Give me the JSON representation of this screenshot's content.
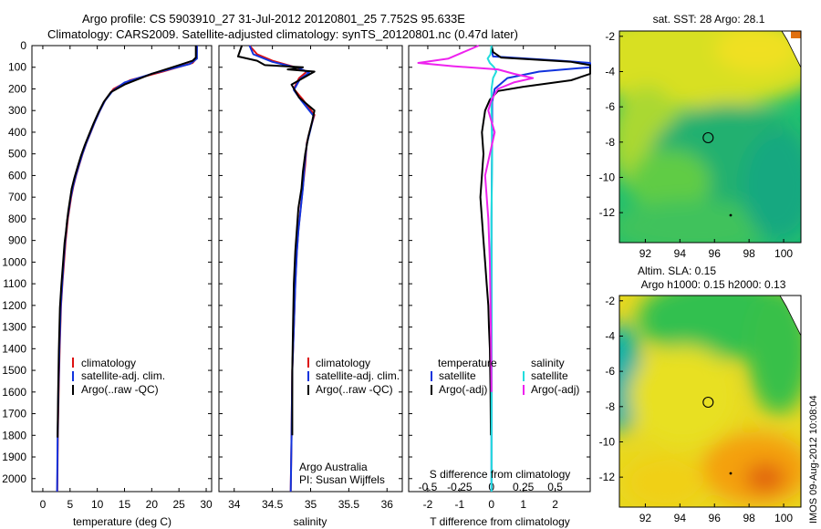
{
  "header": {
    "title_line1": "Argo profile: CS 5903910_27 31-Jul-2012 20120801_25 7.752S 95.633E",
    "title_line2": "Climatology: CARS2009. Satellite-adjusted climatology: synTS_20120801.nc (0.47d later)"
  },
  "colors": {
    "climatology": "#dd1111",
    "satellite": "#1133dd",
    "argo": "#000000",
    "salinity_satellite": "#22dddd",
    "salinity_argo": "#ee22ee"
  },
  "chart_data": [
    {
      "type": "line",
      "name": "temperature",
      "xlabel": "temperature (deg C)",
      "ylabel": "",
      "xlim": [
        -2,
        31
      ],
      "ylim": [
        2060,
        0
      ],
      "xticks": [
        "0",
        "5",
        "10",
        "15",
        "20",
        "25",
        "30"
      ],
      "xtick_values": [
        0,
        5,
        10,
        15,
        20,
        25,
        30
      ],
      "yticks": [
        "0",
        "100",
        "200",
        "300",
        "400",
        "500",
        "600",
        "700",
        "800",
        "900",
        "1000",
        "1100",
        "1200",
        "1300",
        "1400",
        "1500",
        "1600",
        "1700",
        "1800",
        "1900",
        "2000"
      ],
      "ytick_values": [
        0,
        100,
        200,
        300,
        400,
        500,
        600,
        700,
        800,
        900,
        1000,
        1100,
        1200,
        1300,
        1400,
        1500,
        1600,
        1700,
        1800,
        1900,
        2000
      ],
      "legend": [
        "climatology",
        "satellite-adj. clim.",
        "Argo(..raw -QC)"
      ],
      "series": [
        {
          "name": "climatology",
          "color_key": "climatology",
          "x": [
            28.3,
            28.2,
            27.5,
            22,
            16,
            13,
            11.5,
            10.5,
            9.6,
            8.8,
            8,
            7.3,
            6.7,
            6.1,
            5.6,
            5.2,
            4.9,
            4.6,
            4.4,
            4.2,
            3.9,
            3.6,
            3.35,
            3.1,
            2.9,
            2.75,
            2.65
          ],
          "y": [
            0,
            60,
            80,
            120,
            160,
            200,
            250,
            300,
            350,
            400,
            450,
            500,
            550,
            600,
            650,
            700,
            750,
            800,
            850,
            900,
            1000,
            1100,
            1200,
            1400,
            1600,
            1800,
            2060
          ]
        },
        {
          "name": "satellite-adj. clim.",
          "color_key": "satellite",
          "x": [
            28.3,
            28.3,
            27,
            20,
            15,
            12.8,
            11.4,
            10.4,
            9.5,
            8.7,
            7.9,
            7.2,
            6.6,
            6,
            5.5,
            5.1,
            4.8,
            4.5,
            4.3,
            4.1,
            3.8,
            3.55,
            3.3,
            3.05,
            2.85,
            2.72,
            2.62
          ],
          "y": [
            0,
            60,
            85,
            130,
            170,
            210,
            255,
            305,
            355,
            405,
            455,
            505,
            555,
            605,
            655,
            705,
            755,
            805,
            855,
            905,
            1005,
            1105,
            1205,
            1405,
            1605,
            1805,
            2060
          ]
        },
        {
          "name": "Argo(..raw -QC)",
          "color_key": "argo",
          "x": [
            28.1,
            28.1,
            27.5,
            25,
            20,
            15,
            12.5,
            11.2,
            10.2,
            9.3,
            8.5,
            7.7,
            7,
            6.4,
            5.8,
            5.3,
            5,
            4.7,
            4.45,
            4.25,
            4,
            3.7,
            3.4,
            3.15,
            2.95,
            2.8,
            2.7
          ],
          "y": [
            0,
            55,
            70,
            90,
            130,
            180,
            215,
            260,
            310,
            360,
            410,
            460,
            510,
            560,
            610,
            660,
            710,
            760,
            810,
            860,
            910,
            1010,
            1110,
            1210,
            1410,
            1610,
            1810
          ]
        }
      ]
    },
    {
      "type": "line",
      "name": "salinity",
      "xlabel": "salinity",
      "ylabel": "",
      "xlim": [
        33.8,
        36.2
      ],
      "ylim": [
        2060,
        0
      ],
      "xticks": [
        "34",
        "34.5",
        "35",
        "35.5",
        "36"
      ],
      "xtick_values": [
        34,
        34.5,
        35,
        35.5,
        36
      ],
      "legend": [
        "climatology",
        "satellite-adj. clim.",
        "Argo(..raw -QC)"
      ],
      "annotations": [
        "Argo Australia",
        "PI: Susan Wijffels"
      ],
      "series": [
        {
          "name": "climatology",
          "color_key": "climatology",
          "x": [
            34.2,
            34.3,
            34.5,
            34.8,
            34.95,
            34.85,
            34.78,
            34.9,
            35.05,
            35.0,
            34.95,
            34.93,
            34.9,
            34.87,
            34.84,
            34.82,
            34.8,
            34.78,
            34.76,
            34.75,
            34.74
          ],
          "y": [
            0,
            40,
            70,
            100,
            120,
            150,
            200,
            250,
            320,
            380,
            450,
            550,
            650,
            750,
            850,
            950,
            1100,
            1300,
            1500,
            1800,
            2060
          ]
        },
        {
          "name": "satellite-adj. clim.",
          "color_key": "satellite",
          "x": [
            34.2,
            34.25,
            34.5,
            34.85,
            34.98,
            34.86,
            34.78,
            34.88,
            35.04,
            35.0,
            34.95,
            34.92,
            34.9,
            34.87,
            34.84,
            34.82,
            34.8,
            34.78,
            34.76,
            34.75,
            34.74
          ],
          "y": [
            0,
            40,
            75,
            105,
            125,
            155,
            205,
            255,
            325,
            385,
            455,
            555,
            655,
            755,
            855,
            955,
            1105,
            1305,
            1505,
            1805,
            2060
          ]
        },
        {
          "name": "Argo(..raw -QC)",
          "color_key": "argo",
          "x": [
            34.1,
            34.05,
            34.3,
            34.4,
            34.9,
            34.7,
            35.05,
            34.95,
            34.75,
            34.85,
            35.05,
            35.02,
            34.97,
            34.93,
            34.9,
            34.88,
            34.84,
            34.82,
            34.8,
            34.78,
            34.77,
            34.76,
            34.76
          ],
          "y": [
            0,
            50,
            70,
            90,
            100,
            110,
            120,
            140,
            180,
            240,
            300,
            350,
            420,
            500,
            580,
            660,
            750,
            850,
            950,
            1100,
            1300,
            1500,
            1800
          ]
        }
      ]
    },
    {
      "type": "line",
      "name": "difference",
      "xlabel": "T difference from climatology",
      "xlabel_top": "S difference from climatology",
      "ylabel": "",
      "xlim": [
        -2.6,
        3.1
      ],
      "ylim": [
        2060,
        0
      ],
      "xticks": [
        "-2",
        "-1",
        "0",
        "1",
        "2"
      ],
      "xtick_values": [
        -2,
        -1,
        0,
        1,
        2
      ],
      "xticks_top": [
        "-0.5",
        "-0.25",
        "0",
        "0.25",
        "0.5"
      ],
      "xtick_values_top": [
        -0.5,
        -0.25,
        0,
        0.25,
        0.5
      ],
      "legend_temperature": [
        "temperature",
        "satellite",
        "Argo(-adj)"
      ],
      "legend_salinity": [
        "salinity",
        "satellite",
        "Argo(-adj)"
      ],
      "series": [
        {
          "name": "T satellite",
          "color_key": "satellite",
          "x": [
            0,
            0.02,
            0.05,
            2.2,
            3.1,
            3.1,
            1.5,
            0.5,
            0.1,
            0.02,
            0.02,
            0,
            0,
            0,
            0
          ],
          "y": [
            0,
            30,
            50,
            70,
            80,
            100,
            120,
            150,
            200,
            260,
            400,
            800,
            1200,
            1600,
            2060
          ]
        },
        {
          "name": "T Argo(-adj)",
          "color_key": "argo",
          "x": [
            0,
            0.05,
            0.3,
            2.5,
            3.1,
            3.1,
            2.5,
            1.0,
            0.2,
            -0.05,
            -0.2,
            -0.3,
            -0.25,
            -0.3,
            -0.35,
            -0.3,
            -0.25,
            -0.2,
            -0.15,
            -0.1,
            -0.08,
            -0.05,
            -0.03,
            -0.02
          ],
          "y": [
            0,
            30,
            55,
            75,
            90,
            130,
            160,
            190,
            210,
            250,
            300,
            400,
            500,
            600,
            700,
            800,
            900,
            1000,
            1100,
            1200,
            1300,
            1400,
            1600,
            1800
          ]
        },
        {
          "name": "S satellite",
          "color_key": "salinity_satellite",
          "x": [
            0,
            -0.03,
            -0.12,
            -0.05,
            0.08,
            0.15,
            0.05,
            0,
            0,
            0.02,
            0,
            0,
            0
          ],
          "y": [
            0,
            40,
            60,
            80,
            100,
            120,
            150,
            200,
            300,
            500,
            800,
            1200,
            2060
          ]
        },
        {
          "name": "S Argo(-adj)",
          "color_key": "salinity_argo",
          "x": [
            -0.4,
            -1.35,
            -2.3,
            -1.2,
            0.2,
            0.7,
            1.3,
            0.7,
            0.2,
            0,
            -0.1,
            0.1,
            -0.2,
            -0.1,
            -0.05,
            -0.02,
            0
          ],
          "y": [
            0,
            60,
            80,
            95,
            110,
            130,
            150,
            170,
            200,
            250,
            300,
            400,
            600,
            800,
            1000,
            1300,
            1600
          ]
        }
      ]
    },
    {
      "type": "heatmap",
      "name": "sst",
      "title": "sat. SST: 28 Argo: 28.1",
      "xlim": [
        90.5,
        101
      ],
      "ylim": [
        -13.7,
        -1.7
      ],
      "xticks": [
        "92",
        "94",
        "96",
        "98",
        "100"
      ],
      "xtick_values": [
        92,
        94,
        96,
        98,
        100
      ],
      "yticks": [
        "-2",
        "-4",
        "-6",
        "-8",
        "-10",
        "-12"
      ],
      "ytick_values": [
        -2,
        -4,
        -6,
        -8,
        -10,
        -12
      ],
      "marker": {
        "lon": 95.633,
        "lat": -7.752
      }
    },
    {
      "type": "heatmap",
      "name": "sla",
      "title": "Altim. SLA: 0.15",
      "subtitle": "Argo h1000: 0.15 h2000: 0.13",
      "xlim": [
        90.5,
        101
      ],
      "ylim": [
        -13.7,
        -1.7
      ],
      "xticks": [
        "92",
        "94",
        "96",
        "98",
        "100"
      ],
      "xtick_values": [
        92,
        94,
        96,
        98,
        100
      ],
      "yticks": [
        "-2",
        "-4",
        "-6",
        "-8",
        "-10",
        "-12"
      ],
      "ytick_values": [
        -2,
        -4,
        -6,
        -8,
        -10,
        -12
      ],
      "marker": {
        "lon": 95.633,
        "lat": -7.752
      }
    }
  ],
  "footer": {
    "stamp": "IMOS 09-Aug-2012 10:08:04"
  }
}
